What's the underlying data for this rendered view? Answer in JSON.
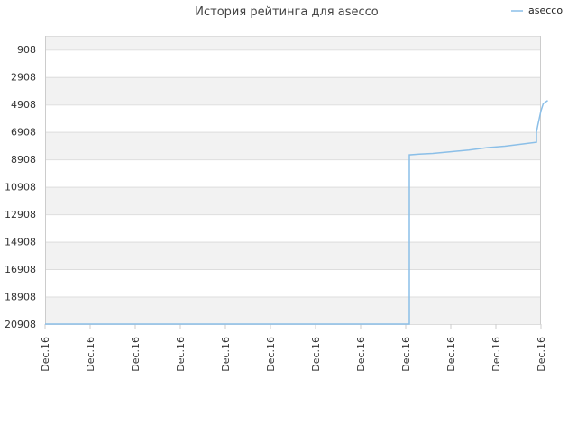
{
  "chart_data": {
    "type": "line",
    "title": "История рейтинга для asecco",
    "xlabel": "",
    "ylabel": "",
    "y_axis_inverted": true,
    "ylim": [
      20908,
      -92
    ],
    "y_ticks": [
      908,
      2908,
      4908,
      6908,
      8908,
      10908,
      12908,
      14908,
      16908,
      18908,
      20908
    ],
    "x_ticks": [
      "Dec.16",
      "Dec.16",
      "Dec.16",
      "Dec.16",
      "Dec.16",
      "Dec.16",
      "Dec.16",
      "Dec.16",
      "Dec.16",
      "Dec.16",
      "Dec.16",
      "Dec.16"
    ],
    "x_range": [
      0,
      11
    ],
    "grid": true,
    "alternating_bands": true,
    "legend_position": "top-right",
    "series": [
      {
        "name": "asecco",
        "color": "#8bbfe8",
        "points": [
          [
            0,
            20908
          ],
          [
            8.08,
            20908
          ],
          [
            8.08,
            8580
          ],
          [
            8.3,
            8520
          ],
          [
            8.6,
            8470
          ],
          [
            9.0,
            8350
          ],
          [
            9.4,
            8230
          ],
          [
            9.8,
            8050
          ],
          [
            10.2,
            7950
          ],
          [
            10.6,
            7780
          ],
          [
            10.9,
            7660
          ],
          [
            10.9,
            6910
          ],
          [
            10.93,
            6420
          ],
          [
            11.0,
            5360
          ],
          [
            11.05,
            4850
          ],
          [
            11.15,
            4620
          ]
        ]
      }
    ],
    "colors": {
      "band": "#f2f2f2",
      "grid": "#dddddd",
      "axis": "#cccccc"
    }
  }
}
